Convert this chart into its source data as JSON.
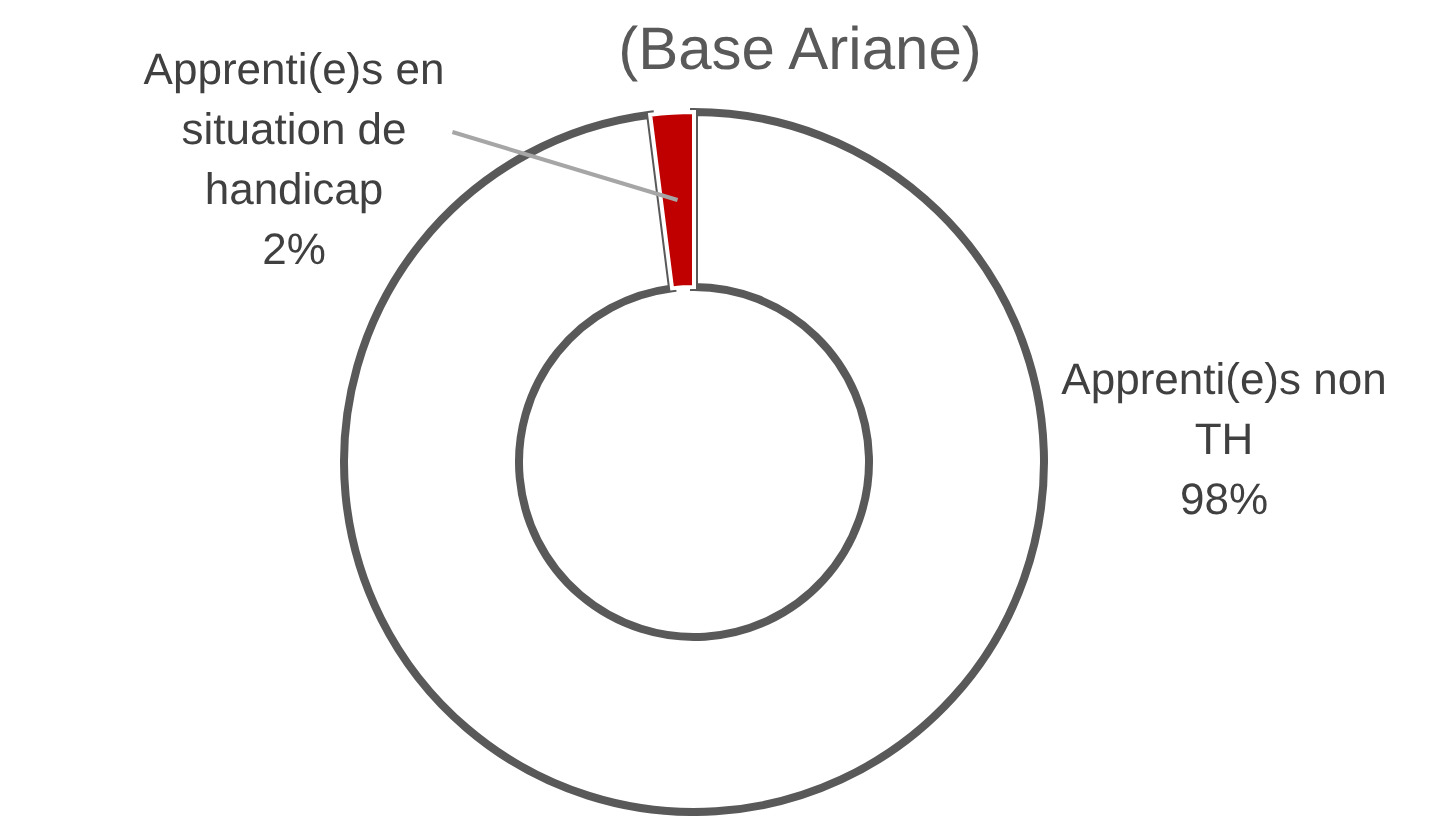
{
  "chart_data": {
    "type": "donut",
    "subtitle": "(Base Ariane)",
    "categories": [
      "Apprenti(e)s non TH",
      "Apprenti(e)s en situation de handicap"
    ],
    "values": [
      98,
      2
    ],
    "colors": [
      "#ffffff",
      "#c00000"
    ],
    "value_labels": [
      "98%",
      "2%"
    ],
    "legend": false
  }
}
